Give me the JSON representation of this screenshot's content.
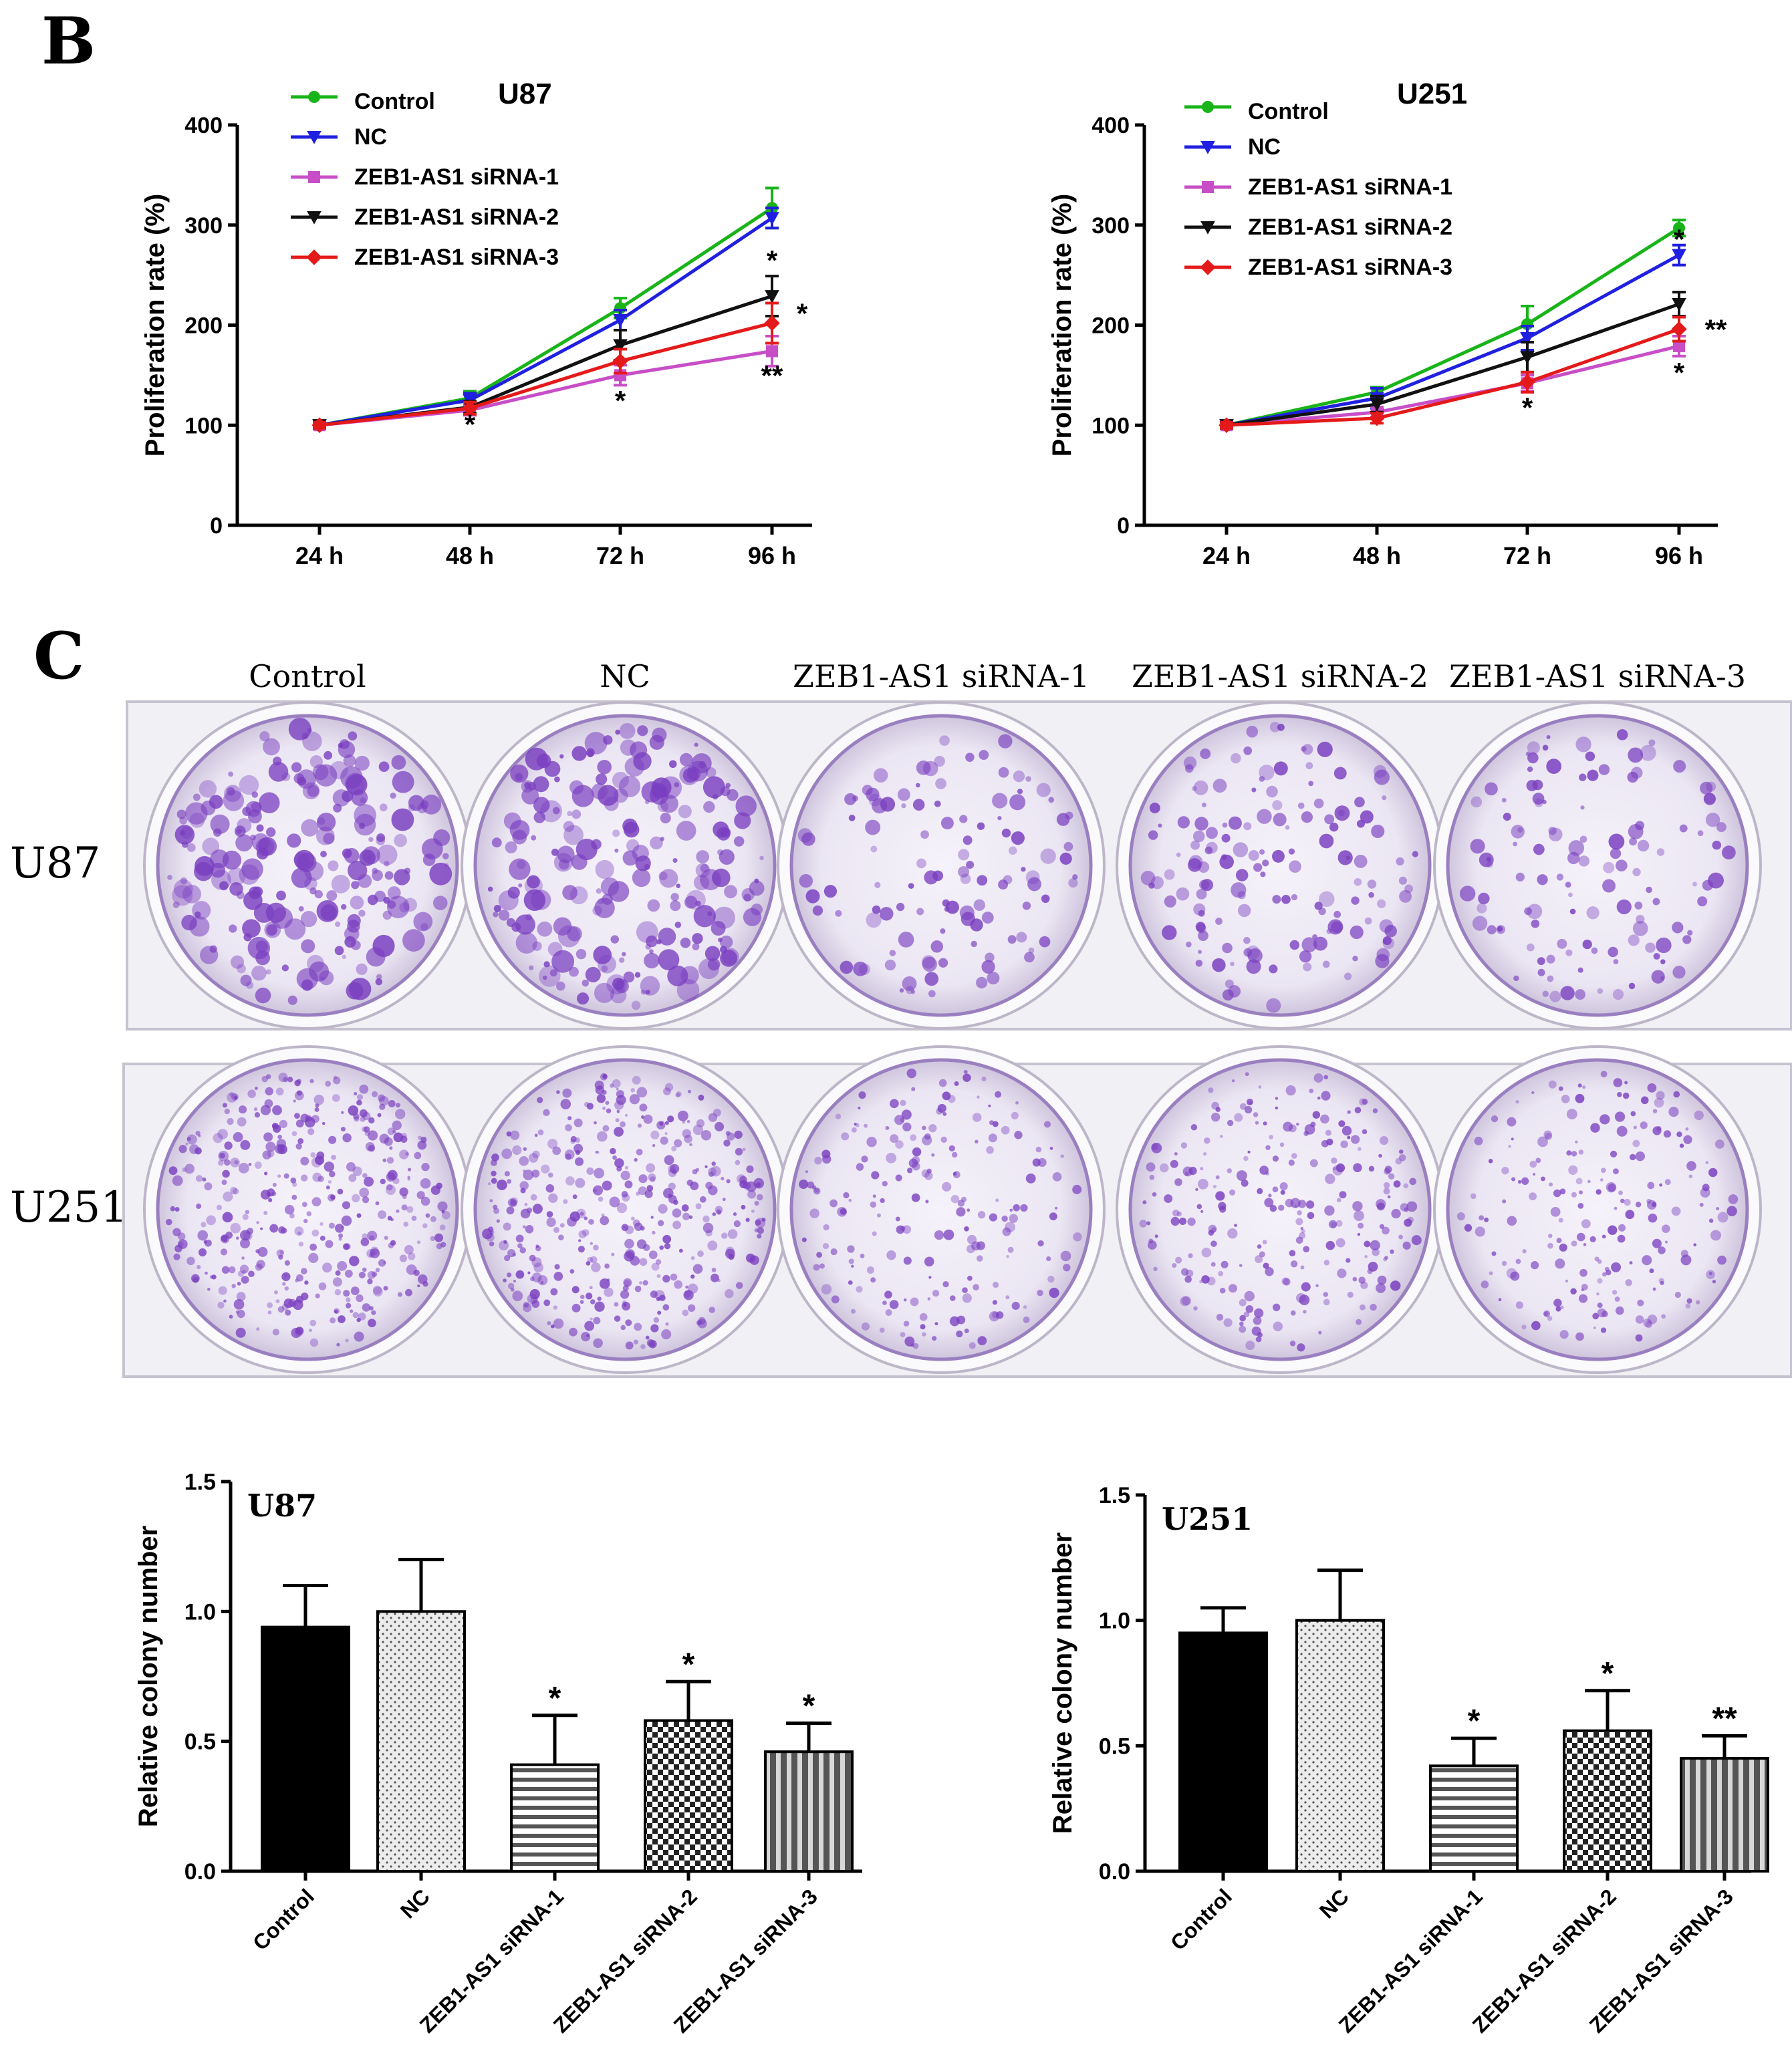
{
  "panel_labels": {
    "b": "B",
    "c": "C"
  },
  "colony_assay": {
    "columns": [
      "Control",
      "NC",
      "ZEB1-AS1 siRNA-1",
      "ZEB1-AS1 siRNA-2",
      "ZEB1-AS1 siRNA-3"
    ],
    "rows": [
      "U87",
      "U251"
    ],
    "stain_color": "#7a3fc0",
    "colony_density": [
      [
        1.0,
        1.0,
        0.4,
        0.6,
        0.45
      ],
      [
        1.0,
        1.0,
        0.45,
        0.6,
        0.45
      ]
    ]
  },
  "colors": {
    "control": "#18b418",
    "nc": "#2020e0",
    "sirna1": "#c84ec8",
    "sirna2": "#111111",
    "sirna3": "#e41a1a"
  },
  "chart_data": [
    {
      "type": "line",
      "title": "U87",
      "xlabel": "",
      "ylabel": "Proliferation rate (%)",
      "categories": [
        "24 h",
        "48 h",
        "72 h",
        "96 h"
      ],
      "ylim": [
        0,
        400
      ],
      "yticks": [
        0,
        100,
        200,
        300,
        400
      ],
      "series": [
        {
          "name": "Control",
          "values": [
            100,
            127,
            217,
            317
          ],
          "errors": [
            3,
            7,
            10,
            20
          ]
        },
        {
          "name": "NC",
          "values": [
            100,
            125,
            205,
            307
          ],
          "errors": [
            3,
            7,
            10,
            10
          ]
        },
        {
          "name": "ZEB1-AS1 siRNA-1",
          "values": [
            100,
            115,
            150,
            174
          ],
          "errors": [
            3,
            5,
            10,
            15
          ]
        },
        {
          "name": "ZEB1-AS1 siRNA-2",
          "values": [
            100,
            118,
            180,
            229
          ],
          "errors": [
            3,
            6,
            15,
            20
          ]
        },
        {
          "name": "ZEB1-AS1 siRNA-3",
          "values": [
            100,
            117,
            164,
            202
          ],
          "errors": [
            3,
            6,
            12,
            20
          ]
        }
      ],
      "annotations": [
        {
          "text": "*",
          "x": "48 h",
          "y": 91
        },
        {
          "text": "*",
          "x": "72 h",
          "y": 115
        },
        {
          "text": "*",
          "x": "96 h",
          "y": 255
        },
        {
          "text": "*",
          "x": "96 h",
          "y": 202
        },
        {
          "text": "**",
          "x": "96 h",
          "y": 140
        }
      ]
    },
    {
      "type": "line",
      "title": "U251",
      "xlabel": "",
      "ylabel": "Proliferation rate (%)",
      "categories": [
        "24 h",
        "48 h",
        "72 h",
        "96 h"
      ],
      "ylim": [
        0,
        400
      ],
      "yticks": [
        0,
        100,
        200,
        300,
        400
      ],
      "series": [
        {
          "name": "Control",
          "values": [
            100,
            133,
            201,
            297
          ],
          "errors": [
            3,
            5,
            18,
            8
          ]
        },
        {
          "name": "NC",
          "values": [
            100,
            127,
            187,
            270
          ],
          "errors": [
            3,
            10,
            12,
            10
          ]
        },
        {
          "name": "ZEB1-AS1 siRNA-1",
          "values": [
            100,
            113,
            142,
            179
          ],
          "errors": [
            3,
            5,
            8,
            10
          ]
        },
        {
          "name": "ZEB1-AS1 siRNA-2",
          "values": [
            100,
            121,
            168,
            221
          ],
          "errors": [
            3,
            8,
            15,
            12
          ]
        },
        {
          "name": "ZEB1-AS1 siRNA-3",
          "values": [
            100,
            107,
            143,
            196
          ],
          "errors": [
            3,
            5,
            10,
            12
          ]
        }
      ],
      "annotations": [
        {
          "text": "*",
          "x": "72 h",
          "y": 108
        },
        {
          "text": "*",
          "x": "96 h",
          "y": 276
        },
        {
          "text": "**",
          "x": "96 h",
          "y": 186
        },
        {
          "text": "*",
          "x": "96 h",
          "y": 143
        }
      ]
    },
    {
      "type": "bar",
      "title": "U87",
      "xlabel": "",
      "ylabel": "Relative colony number",
      "categories": [
        "Control",
        "NC",
        "ZEB1-AS1 siRNA-1",
        "ZEB1-AS1 siRNA-2",
        "ZEB1-AS1 siRNA-3"
      ],
      "values": [
        0.94,
        1.0,
        0.41,
        0.58,
        0.46
      ],
      "errors": [
        0.16,
        0.2,
        0.19,
        0.15,
        0.11
      ],
      "significance": [
        "",
        "",
        "*",
        "*",
        "*"
      ],
      "ylim": [
        0,
        1.5
      ],
      "yticks": [
        "0.0",
        "0.5",
        "1.0",
        "1.5"
      ]
    },
    {
      "type": "bar",
      "title": "U251",
      "xlabel": "",
      "ylabel": "Relative colony number",
      "categories": [
        "Control",
        "NC",
        "ZEB1-AS1 siRNA-1",
        "ZEB1-AS1 siRNA-2",
        "ZEB1-AS1 siRNA-3"
      ],
      "values": [
        0.95,
        1.0,
        0.42,
        0.56,
        0.45
      ],
      "errors": [
        0.1,
        0.2,
        0.11,
        0.16,
        0.09
      ],
      "significance": [
        "",
        "",
        "*",
        "*",
        "**"
      ],
      "ylim": [
        0,
        1.5
      ],
      "yticks": [
        "0.0",
        "0.5",
        "1.0",
        "1.5"
      ]
    }
  ]
}
